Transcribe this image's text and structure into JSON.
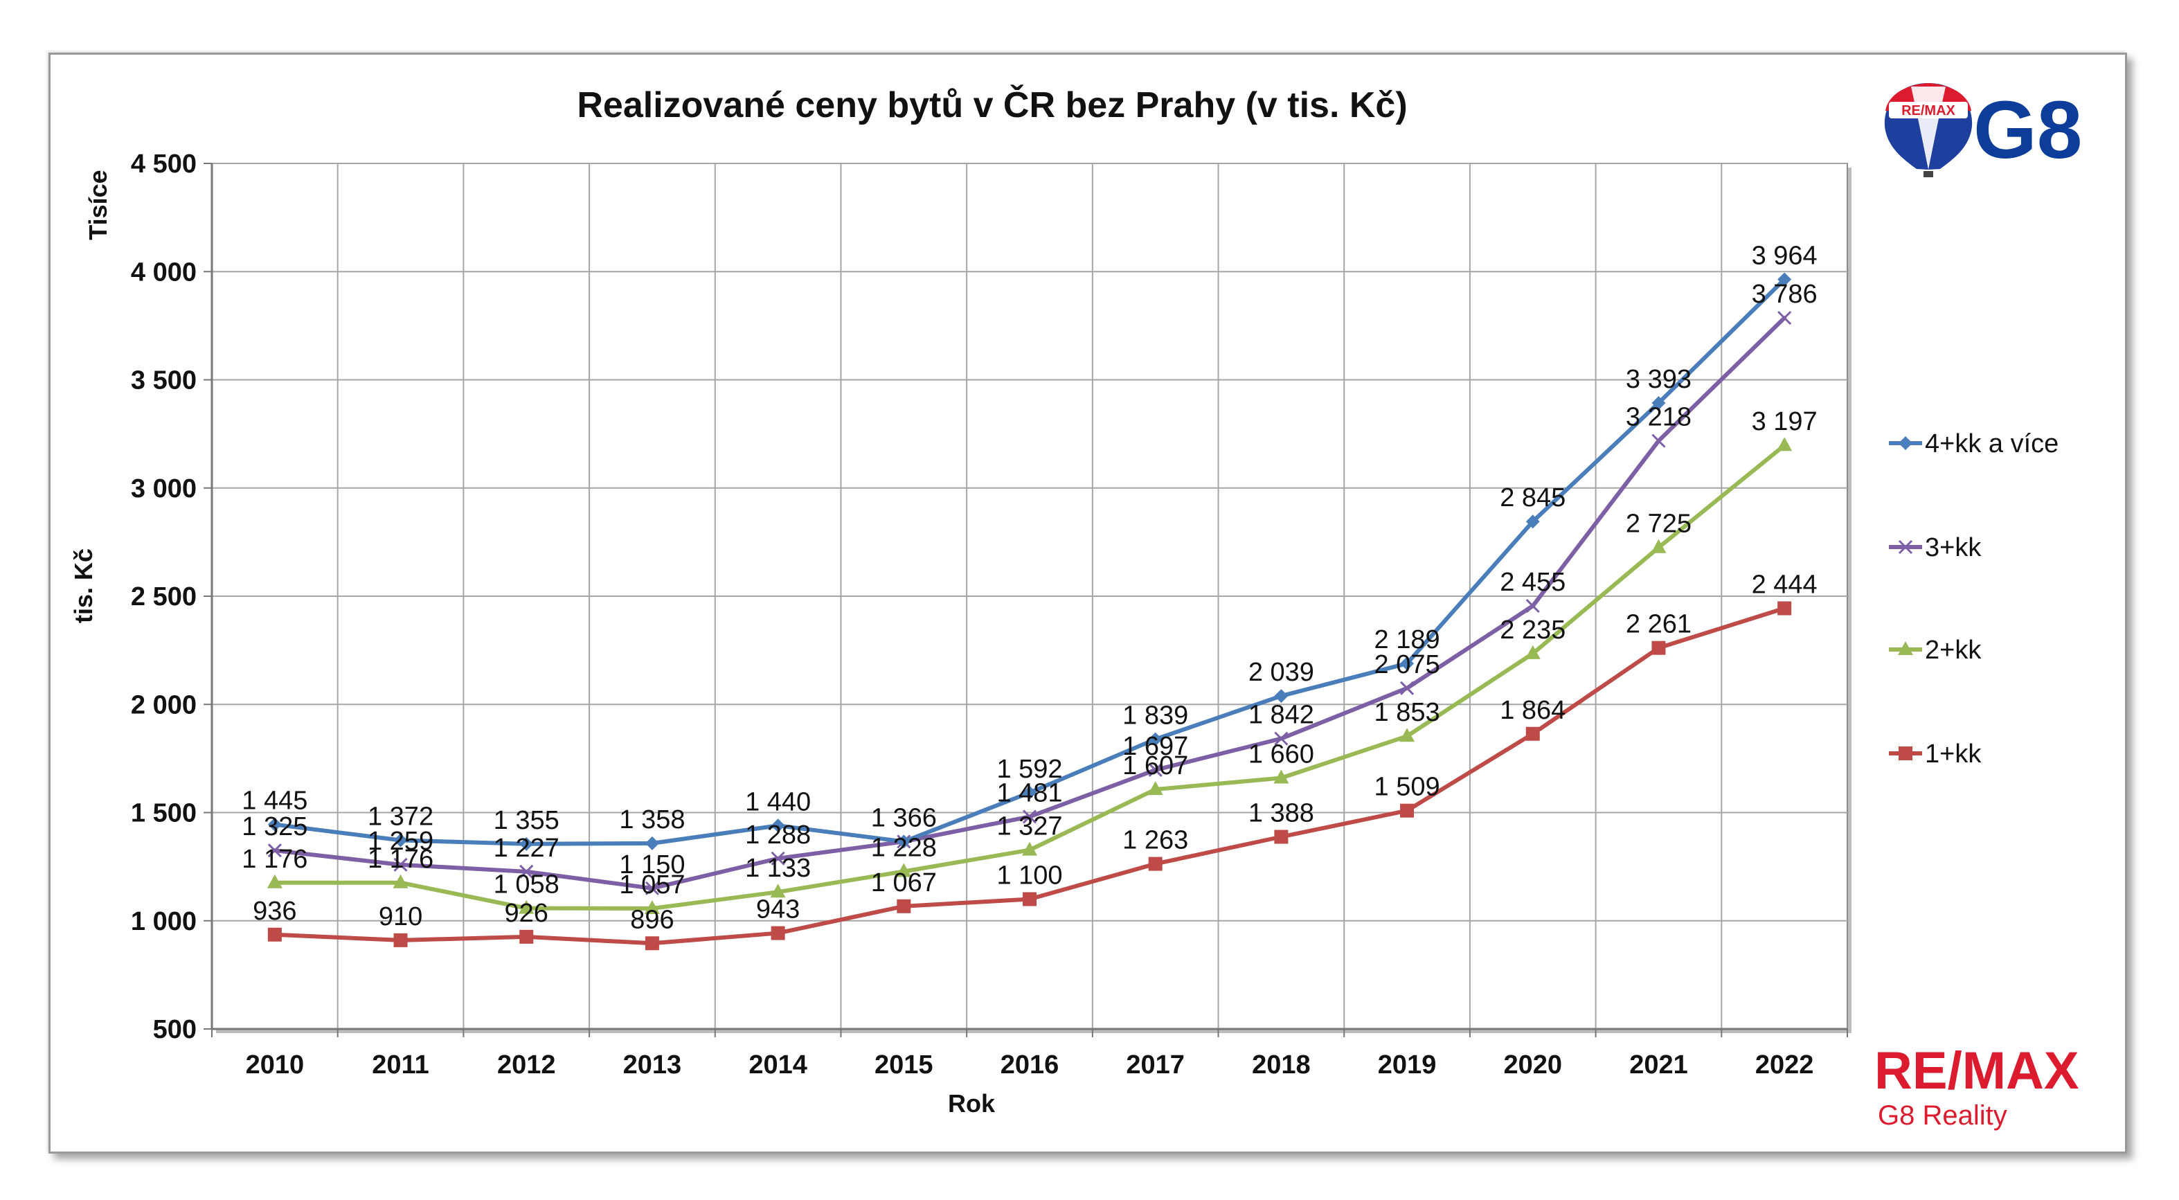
{
  "chart_data": {
    "type": "line",
    "title": "Realizované ceny bytů v ČR bez Prahy (v tis. Kč)",
    "xlabel": "Rok",
    "ylabel": "tis. Kč",
    "display_units_label": "Tisíce",
    "categories": [
      "2010",
      "2011",
      "2012",
      "2013",
      "2014",
      "2015",
      "2016",
      "2017",
      "2018",
      "2019",
      "2020",
      "2021",
      "2022"
    ],
    "ylim": [
      500,
      4500
    ],
    "yticks": [
      500,
      1000,
      1500,
      2000,
      2500,
      3000,
      3500,
      4000,
      4500
    ],
    "ytick_labels": [
      "500",
      "1 000",
      "1 500",
      "2 000",
      "2 500",
      "3 000",
      "3 500",
      "4 000",
      "4 500"
    ],
    "grid": true,
    "legend_position": "right",
    "series": [
      {
        "name": "4+kk a více",
        "color": "#4a7ebb",
        "marker": "diamond",
        "values": [
          1445,
          1372,
          1355,
          1358,
          1440,
          1366,
          1592,
          1839,
          2039,
          2189,
          2845,
          3393,
          3964
        ],
        "labels": [
          "1 445",
          "1 372",
          "1 355",
          "1 358",
          "1 440",
          "1 366",
          "1 592",
          "1 839",
          "2 039",
          "2 189",
          "2 845",
          "3 393",
          "3 964"
        ]
      },
      {
        "name": "3+kk",
        "color": "#7d5fa5",
        "marker": "x",
        "values": [
          1325,
          1259,
          1227,
          1150,
          1288,
          1366,
          1481,
          1697,
          1842,
          2075,
          2455,
          3218,
          3786
        ],
        "labels": [
          "1 325",
          "1 259",
          "1 227",
          "1 150",
          "1 288",
          "",
          "1 481",
          "1 697",
          "1 842",
          "2 075",
          "2 455",
          "3 218",
          "3 786"
        ]
      },
      {
        "name": "2+kk",
        "color": "#98b954",
        "marker": "triangle",
        "values": [
          1176,
          1176,
          1058,
          1057,
          1133,
          1228,
          1327,
          1607,
          1660,
          1853,
          2235,
          2725,
          3197
        ],
        "labels": [
          "1 176",
          "1 176",
          "1 058",
          "1 057",
          "1 133",
          "1 228",
          "1 327",
          "1 607",
          "1 660",
          "1 853",
          "2 235",
          "2 725",
          "3 197"
        ]
      },
      {
        "name": "1+kk",
        "color": "#be4b48",
        "marker": "square",
        "values": [
          936,
          910,
          926,
          896,
          943,
          1067,
          1100,
          1263,
          1388,
          1509,
          1864,
          2261,
          2444
        ],
        "labels": [
          "936",
          "910",
          "926",
          "896",
          "943",
          "1 067",
          "1 100",
          "1 263",
          "1 388",
          "1 509",
          "1 864",
          "2 261",
          "2 444"
        ]
      }
    ]
  },
  "branding": {
    "logo_text": "G8",
    "balloon_text": "RE/MAX",
    "brand_name": "RE/MAX",
    "brand_subtitle": "G8 Reality"
  }
}
